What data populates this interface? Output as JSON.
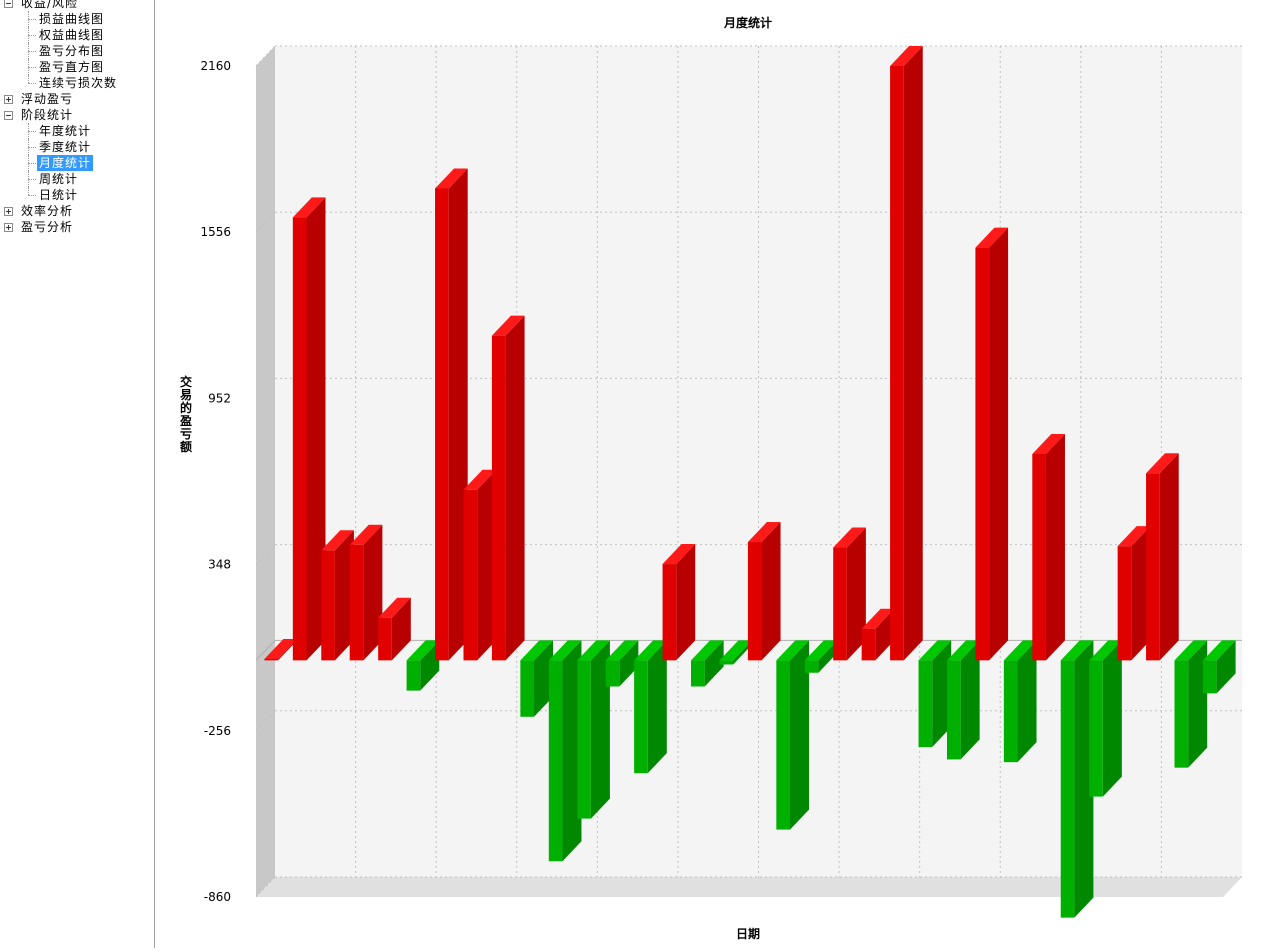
{
  "tree": {
    "groups": [
      {
        "label": "收益/风险",
        "expanded": true,
        "children": [
          "损益曲线图",
          "权益曲线图",
          "盈亏分布图",
          "盈亏直方图",
          "连续亏损次数"
        ]
      },
      {
        "label": "浮动盈亏",
        "expanded": false,
        "children": []
      },
      {
        "label": "阶段统计",
        "expanded": true,
        "children": [
          "年度统计",
          "季度统计",
          "月度统计",
          "周统计",
          "日统计"
        ]
      },
      {
        "label": "效率分析",
        "expanded": false,
        "children": []
      },
      {
        "label": "盈亏分析",
        "expanded": false,
        "children": []
      }
    ],
    "selected": "月度统计"
  },
  "colors": {
    "positive_front": "#e00000",
    "positive_side": "#b80000",
    "positive_top": "#ff1a1a",
    "negative_front": "#00b000",
    "negative_side": "#008800",
    "negative_top": "#00c800",
    "plot_bg": "#f4f4f4",
    "wall": "#c8c8c8",
    "floor": "#e0e0e0",
    "grid": "#c0c0c0"
  },
  "chart_data": {
    "type": "bar",
    "style": "3d",
    "title": "月度统计",
    "xlabel": "日期",
    "ylabel": "交易的盈亏额",
    "ylim": [
      -860,
      2160
    ],
    "yticks": [
      -860,
      -256,
      348,
      952,
      1556,
      2160
    ],
    "grid": true,
    "values": [
      5,
      1610,
      400,
      420,
      155,
      -110,
      1715,
      620,
      1180,
      -205,
      -730,
      -575,
      -95,
      -410,
      350,
      -95,
      -15,
      430,
      -615,
      -45,
      410,
      115,
      2160,
      -315,
      -360,
      1500,
      -370,
      750,
      -935,
      -495,
      415,
      680,
      -390,
      -120
    ]
  }
}
